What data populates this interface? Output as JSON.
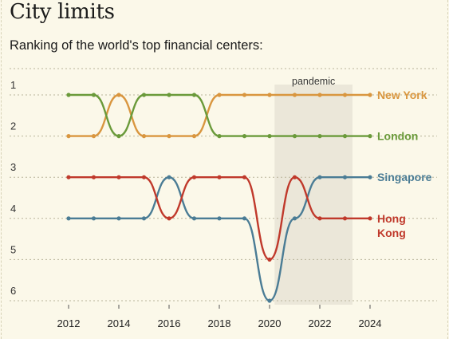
{
  "title": "City limits",
  "subtitle": "Ranking of the world's top financial centers:",
  "chart_data": {
    "type": "line",
    "x": [
      2012,
      2013,
      2014,
      2015,
      2016,
      2017,
      2018,
      2019,
      2020,
      2021,
      2022,
      2023,
      2024
    ],
    "xticks": [
      "2012",
      "2014",
      "2016",
      "2018",
      "2020",
      "2022",
      "2024"
    ],
    "yticks": [
      "1",
      "2",
      "3",
      "4",
      "5",
      "6"
    ],
    "ylim": [
      1,
      6
    ],
    "y_inverted": true,
    "grid": "horizontal dotted",
    "annotation": {
      "label": "pandemic",
      "x_start": 2020.2,
      "x_end": 2023.3
    },
    "series": [
      {
        "name": "New York",
        "label_lines": [
          "New York"
        ],
        "color": "#d9963f",
        "values": [
          2,
          2,
          1,
          2,
          2,
          2,
          1,
          1,
          1,
          1,
          1,
          1,
          1
        ]
      },
      {
        "name": "London",
        "label_lines": [
          "London"
        ],
        "color": "#6a9a3a",
        "values": [
          1,
          1,
          2,
          1,
          1,
          1,
          2,
          2,
          2,
          2,
          2,
          2,
          2
        ]
      },
      {
        "name": "Singapore",
        "label_lines": [
          "Singapore"
        ],
        "color": "#4a7c95",
        "values": [
          4,
          4,
          4,
          4,
          3,
          4,
          4,
          4,
          6,
          4,
          3,
          3,
          3
        ]
      },
      {
        "name": "Hong Kong",
        "label_lines": [
          "Hong",
          "Kong"
        ],
        "color": "#c0392b",
        "values": [
          3,
          3,
          3,
          3,
          4,
          3,
          3,
          3,
          5,
          3,
          4,
          4,
          4
        ]
      }
    ]
  }
}
